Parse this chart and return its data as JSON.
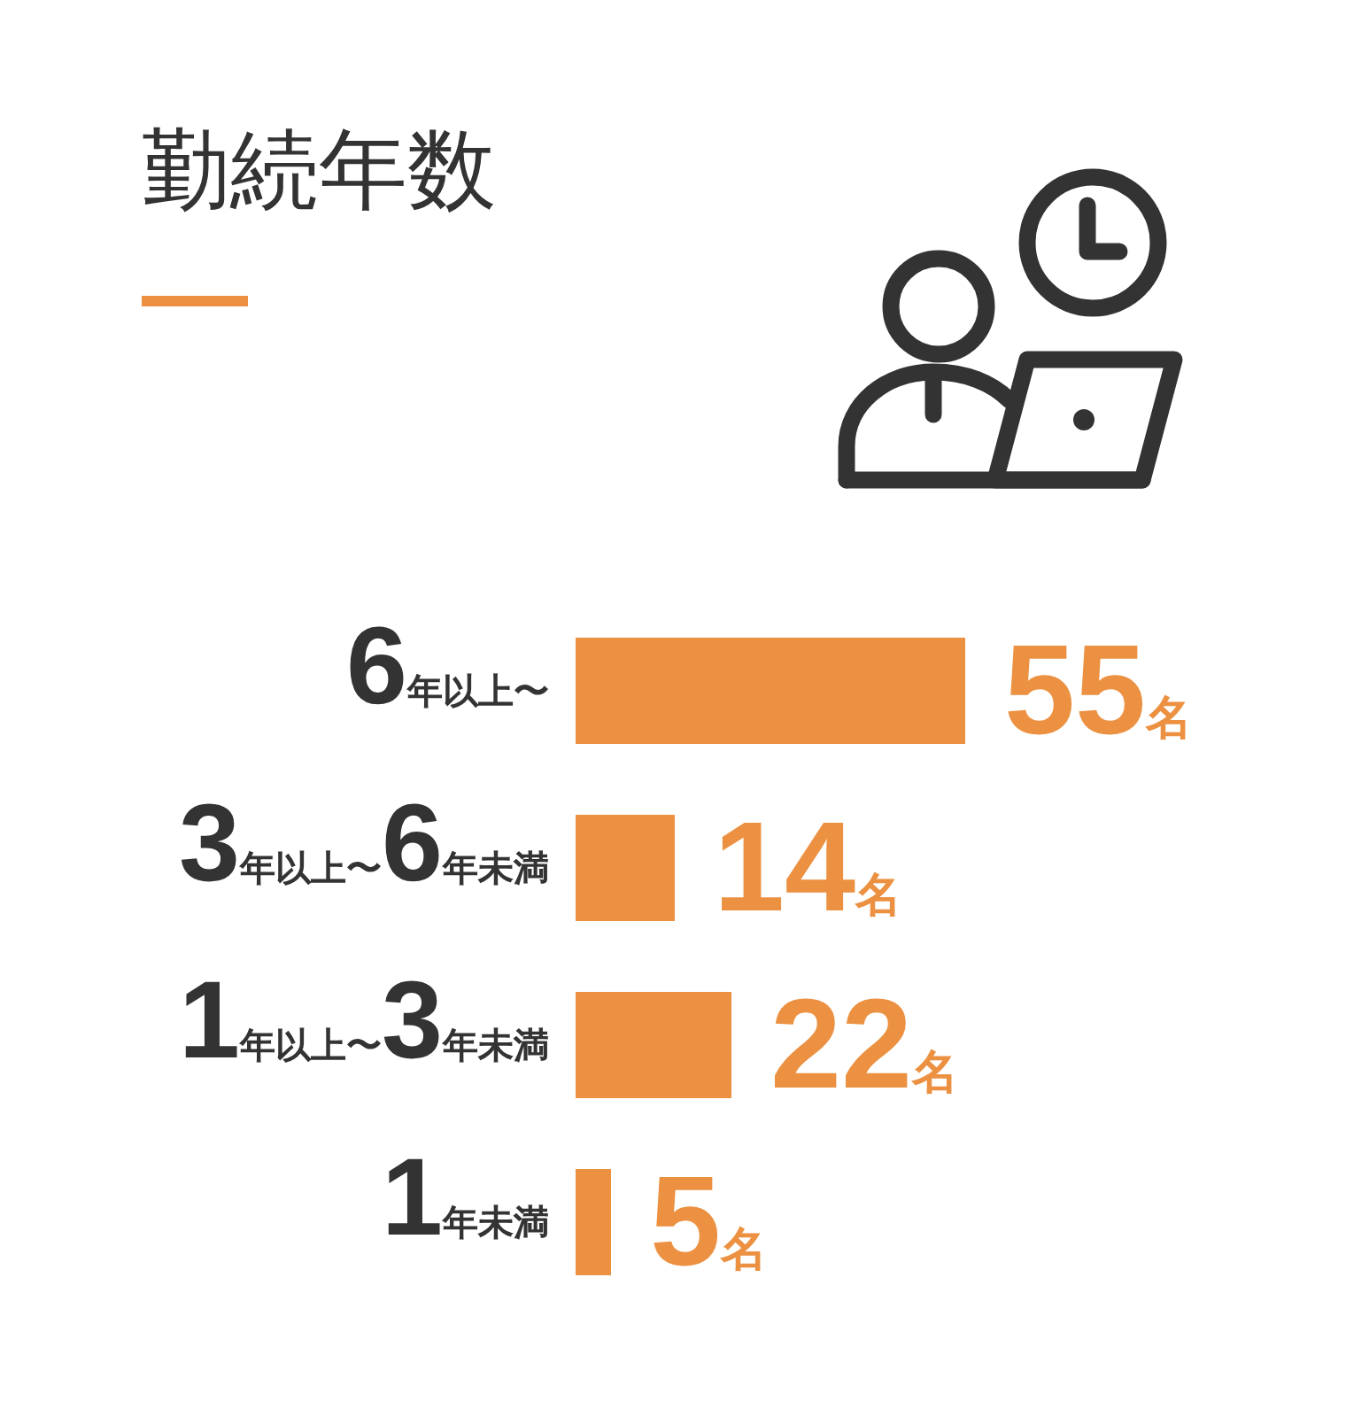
{
  "chart_data": {
    "type": "bar",
    "title": "勤続年数",
    "orientation": "horizontal",
    "categories": [
      "6年以上〜",
      "3年以上〜6年未満",
      "1年以上〜3年未満",
      "1年未満"
    ],
    "values": [
      55,
      14,
      22,
      5
    ],
    "color": "#ec9142",
    "value_labels": [
      "55名",
      "14名",
      "22名",
      "5名"
    ]
  }
}
